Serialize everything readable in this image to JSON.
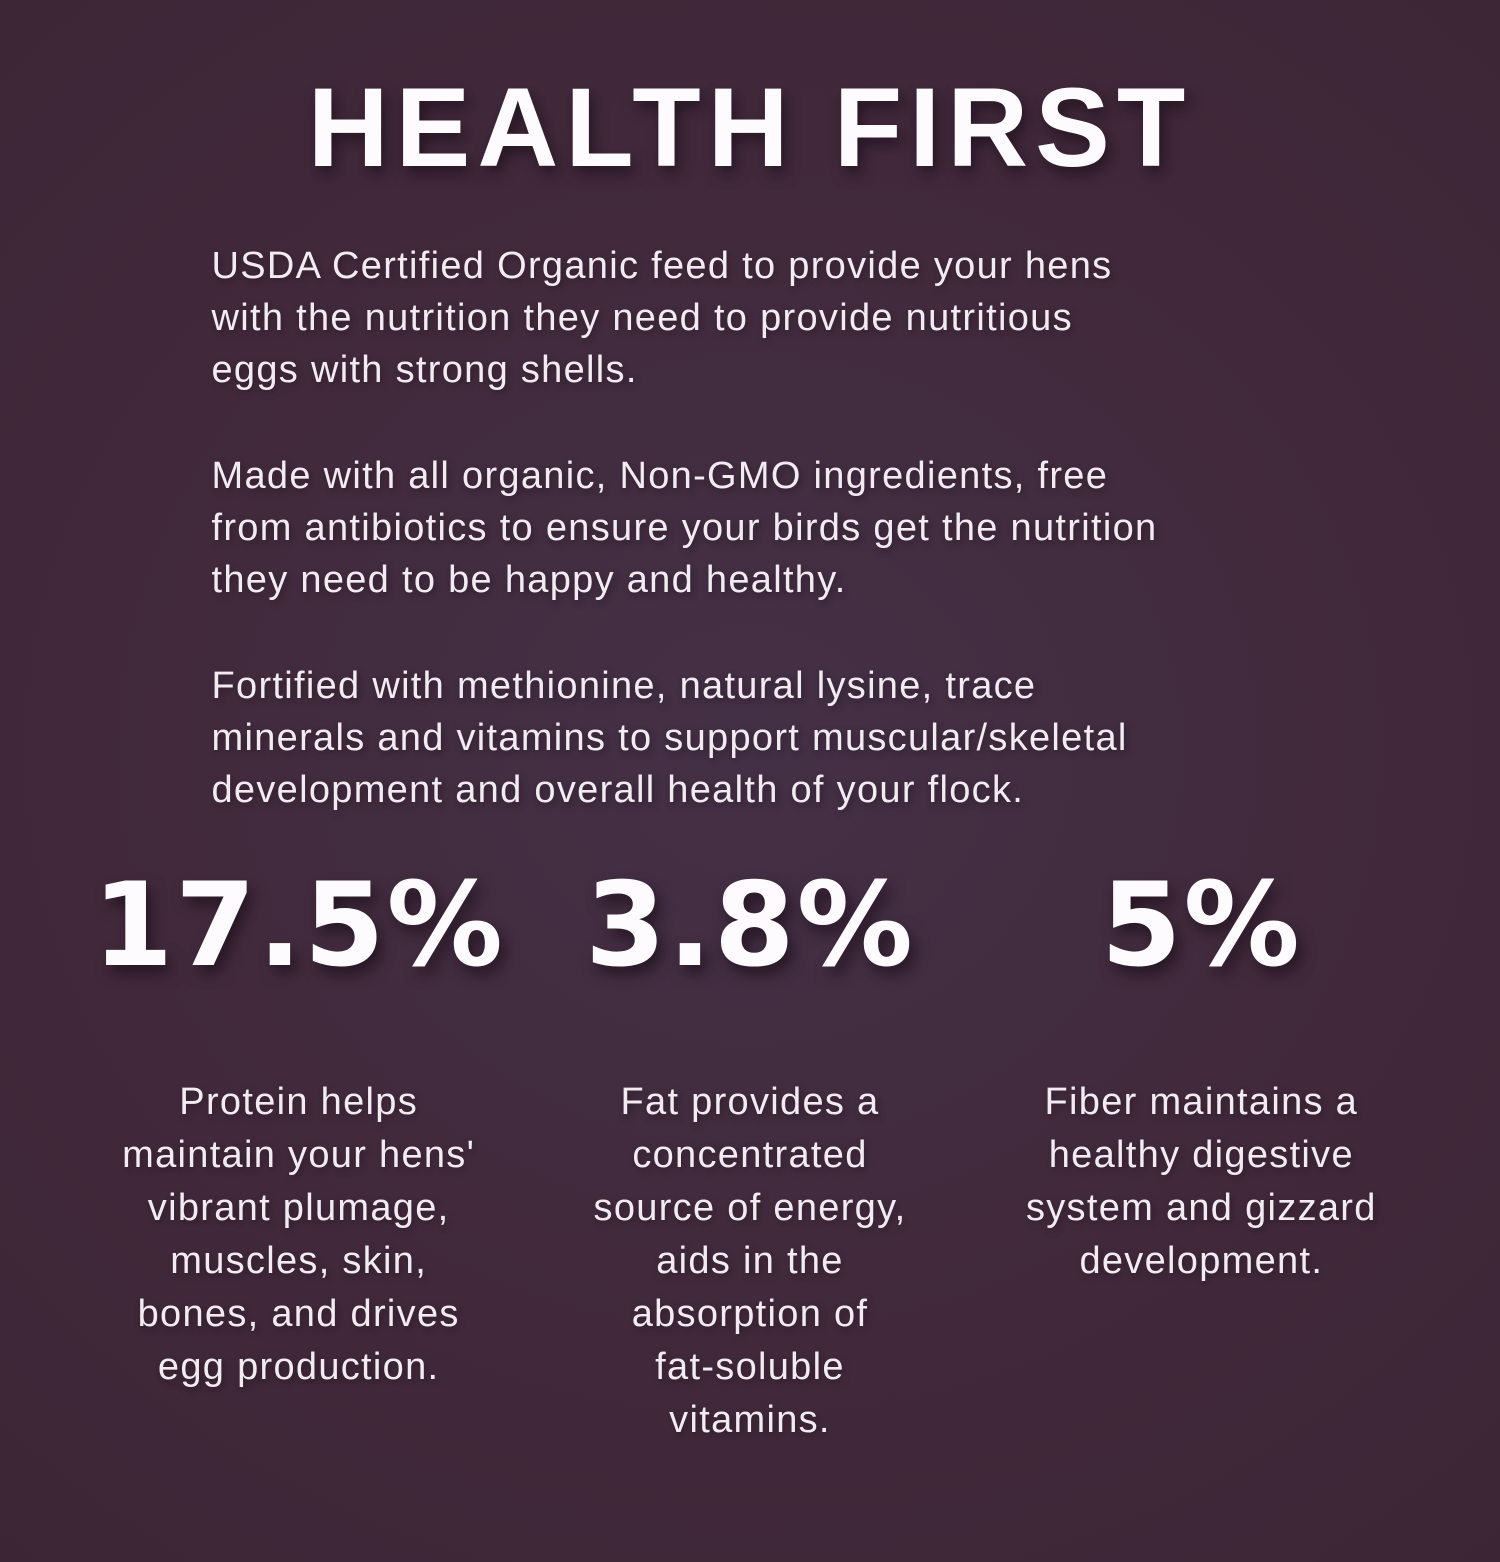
{
  "page": {
    "background_color": "#41293B",
    "text_color": "#F2ECF2",
    "heading_color": "#FDFBFD"
  },
  "header": {
    "title": "HEALTH FIRST"
  },
  "paragraphs": [
    {
      "lines": [
        "USDA Certified Organic feed to provide your hens",
        "with the nutrition they need to provide nutritious",
        "eggs with strong shells."
      ]
    },
    {
      "lines": [
        "Made with all organic, Non-GMO ingredients, free",
        "from antibiotics to ensure your birds get the nutrition",
        "they need to be happy and healthy."
      ]
    },
    {
      "lines": [
        "Fortified with methionine, natural lysine, trace",
        "minerals and vitamins to support muscular/skeletal",
        "development and overall health of your flock."
      ]
    }
  ],
  "stats": [
    {
      "value": "17.5%",
      "nutrient": "Protein",
      "lines": [
        "Protein helps",
        "maintain your hens'",
        "vibrant plumage,",
        "muscles, skin,",
        "bones, and drives",
        "egg production."
      ]
    },
    {
      "value": "3.8%",
      "nutrient": "Fat",
      "lines": [
        "Fat provides a",
        "concentrated",
        "source of energy,",
        "aids in the",
        "absorption of",
        "fat-soluble",
        "vitamins."
      ]
    },
    {
      "value": "5%",
      "nutrient": "Fiber",
      "lines": [
        "Fiber maintains a",
        "healthy digestive",
        "system and gizzard",
        "development."
      ]
    }
  ]
}
